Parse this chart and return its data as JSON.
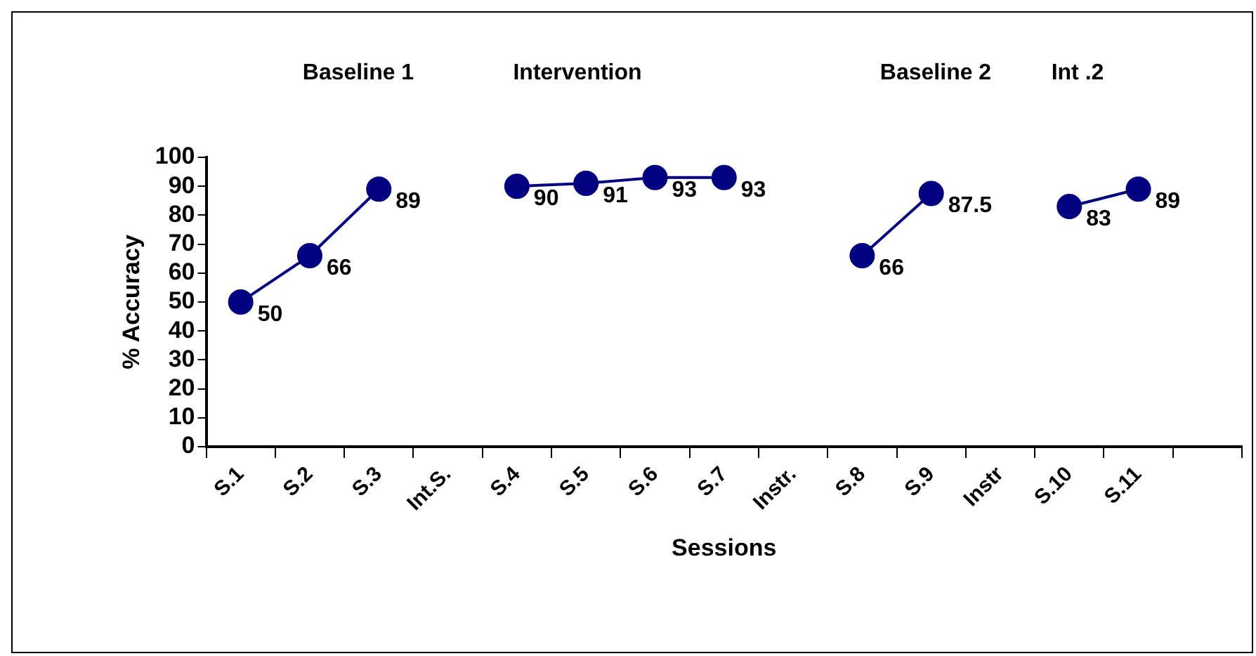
{
  "chart_data": {
    "type": "line",
    "xlabel": "Sessions",
    "ylabel": "% Accuracy",
    "categories": [
      "S.1",
      "S.2",
      "S.3",
      "Int.S.",
      "S.4",
      "S.5",
      "S.6",
      "S.7",
      "Instr.",
      "S.8",
      "S.9",
      "Instr",
      "S.10",
      "S.11",
      null
    ],
    "series": [
      {
        "color": "#000080",
        "values": [
          50,
          66,
          89,
          null,
          90,
          91,
          93,
          93,
          null,
          66,
          87.5,
          null,
          83,
          89,
          null
        ]
      }
    ],
    "ylim": [
      0,
      100
    ],
    "yticks": [
      0,
      10,
      20,
      30,
      40,
      50,
      60,
      70,
      80,
      90,
      100
    ],
    "grid": false,
    "legend": false,
    "marker": "circle",
    "line_style": "solid",
    "data_labels": true,
    "annotations": [
      "Baseline 1",
      "Intervention",
      "Baseline 2",
      "Int .2"
    ]
  }
}
